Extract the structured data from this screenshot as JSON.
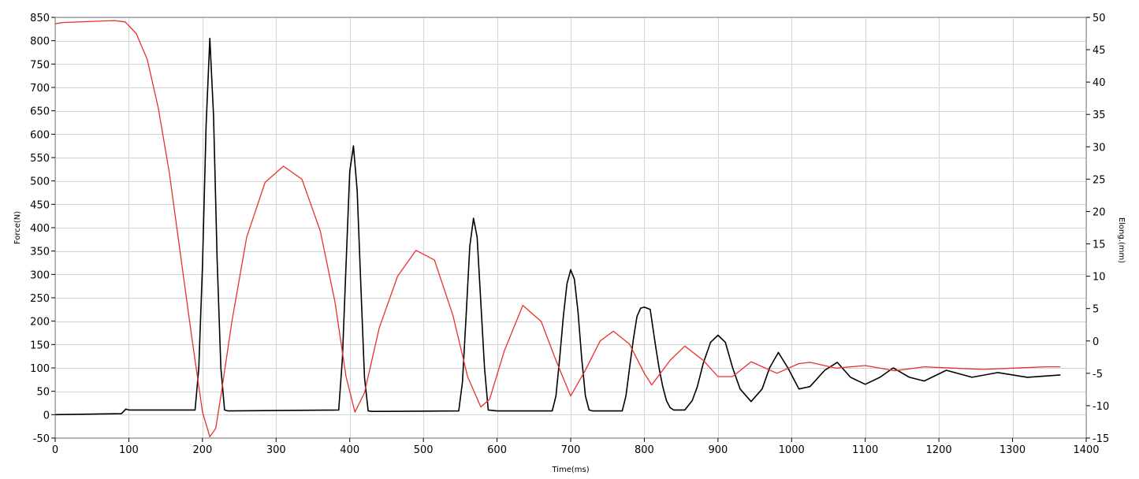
{
  "chart_data": {
    "type": "line",
    "title": "",
    "xlabel": "Time(ms)",
    "ylabel": "Force(N)",
    "y2label": "Elong.(mm)",
    "xlim": [
      0,
      1400
    ],
    "ylim": [
      -50,
      850
    ],
    "y2lim": [
      -15,
      50
    ],
    "x_ticks": [
      0,
      100,
      200,
      300,
      400,
      500,
      600,
      700,
      800,
      900,
      1000,
      1100,
      1200,
      1300,
      1400
    ],
    "y_ticks": [
      -50,
      0,
      50,
      100,
      150,
      200,
      250,
      300,
      350,
      400,
      450,
      500,
      550,
      600,
      650,
      700,
      750,
      800,
      850
    ],
    "y2_ticks": [
      -15,
      -10,
      -5,
      0,
      5,
      10,
      15,
      20,
      25,
      30,
      35,
      40,
      45,
      50
    ],
    "grid": true,
    "legend": "none",
    "series": [
      {
        "axis": "left",
        "color": "#000000",
        "x": [
          0,
          90,
          96,
          100,
          190,
          195,
          200,
          205,
          210,
          215,
          220,
          225,
          230,
          235,
          385,
          390,
          395,
          400,
          405,
          410,
          415,
          420,
          425,
          430,
          435,
          548,
          553,
          558,
          563,
          568,
          573,
          578,
          583,
          588,
          600,
          675,
          680,
          685,
          690,
          695,
          700,
          705,
          710,
          715,
          720,
          725,
          730,
          770,
          775,
          780,
          785,
          790,
          795,
          800,
          808,
          815,
          820,
          825,
          830,
          835,
          840,
          845,
          855,
          865,
          872,
          880,
          890,
          900,
          910,
          920,
          930,
          945,
          960,
          970,
          982,
          995,
          1010,
          1025,
          1045,
          1062,
          1080,
          1100,
          1120,
          1138,
          1160,
          1180,
          1210,
          1245,
          1280,
          1320,
          1365
        ],
        "values": [
          0,
          2,
          12,
          10,
          10,
          100,
          320,
          620,
          805,
          640,
          330,
          100,
          10,
          8,
          10,
          120,
          320,
          520,
          575,
          480,
          280,
          80,
          8,
          7,
          7,
          8,
          70,
          210,
          360,
          420,
          380,
          240,
          100,
          10,
          8,
          8,
          40,
          120,
          210,
          280,
          310,
          290,
          220,
          120,
          40,
          10,
          8,
          8,
          40,
          100,
          160,
          210,
          228,
          230,
          225,
          150,
          100,
          60,
          30,
          15,
          10,
          10,
          10,
          30,
          60,
          110,
          155,
          170,
          155,
          100,
          55,
          28,
          55,
          100,
          133,
          100,
          55,
          60,
          95,
          112,
          80,
          65,
          80,
          100,
          80,
          72,
          95,
          80,
          90,
          80,
          85
        ]
      },
      {
        "axis": "right",
        "color": "#e8312a",
        "x": [
          0,
          10,
          80,
          95,
          110,
          125,
          140,
          155,
          170,
          185,
          200,
          210,
          218,
          225,
          240,
          260,
          285,
          310,
          335,
          360,
          380,
          395,
          407,
          420,
          440,
          465,
          490,
          515,
          540,
          560,
          578,
          590,
          610,
          635,
          660,
          680,
          700,
          720,
          740,
          758,
          780,
          800,
          810,
          835,
          855,
          880,
          900,
          920,
          945,
          980,
          1010,
          1025,
          1060,
          1100,
          1140,
          1180,
          1220,
          1260,
          1300,
          1345,
          1365
        ],
        "values": [
          49,
          49.2,
          49.5,
          49.3,
          47.5,
          43.5,
          36,
          26,
          13.5,
          1,
          -11,
          -14.8,
          -13.5,
          -8.5,
          3,
          16,
          24.5,
          27,
          25,
          17,
          6,
          -5.5,
          -11,
          -8,
          2,
          10,
          14,
          12.5,
          4,
          -5.5,
          -10.2,
          -9,
          -1.5,
          5.5,
          3,
          -3,
          -8.5,
          -4.5,
          0,
          1.5,
          -0.5,
          -5,
          -6.8,
          -3,
          -0.8,
          -3,
          -5.5,
          -5.5,
          -3.2,
          -5,
          -3.5,
          -3.3,
          -4.2,
          -3.8,
          -4.6,
          -4,
          -4.2,
          -4.4,
          -4.2,
          -4,
          -4
        ]
      }
    ]
  }
}
